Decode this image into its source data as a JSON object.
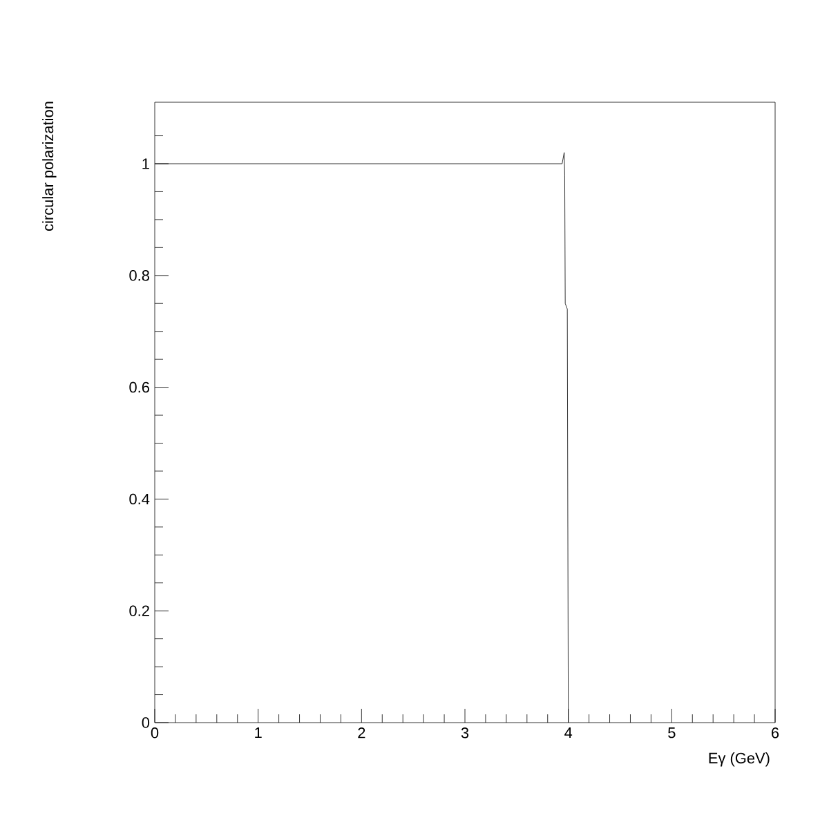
{
  "chart_data": {
    "type": "line",
    "xlabel": "Eγ (GeV)",
    "ylabel": "circular polarization",
    "x": [
      0,
      3.94,
      3.96,
      3.965,
      3.97,
      3.99,
      4.0
    ],
    "values": [
      1,
      1,
      1.02,
      0.98,
      0.75,
      0.74,
      0
    ],
    "color": "#000000",
    "line_style": "solid",
    "marker": "none",
    "grid": false,
    "xlim": [
      0,
      6
    ],
    "ylim": [
      0,
      1.11
    ],
    "xticks": [
      0,
      {
        "value": 0.2,
        "label": null
      },
      {
        "value": 0.4,
        "label": null
      },
      {
        "value": 0.6,
        "label": null
      },
      {
        "value": 0.8,
        "label": null
      },
      1,
      {
        "value": 1.2,
        "label": null
      },
      {
        "value": 1.4,
        "label": null
      },
      {
        "value": 1.6,
        "label": null
      },
      {
        "value": 1.8,
        "label": null
      },
      2,
      {
        "value": 2.2,
        "label": null
      },
      {
        "value": 2.4,
        "label": null
      },
      {
        "value": 2.6,
        "label": null
      },
      {
        "value": 2.8,
        "label": null
      },
      3,
      {
        "value": 3.2,
        "label": null
      },
      {
        "value": 3.4,
        "label": null
      },
      {
        "value": 3.6,
        "label": null
      },
      {
        "value": 3.8,
        "label": null
      },
      4,
      {
        "value": 4.2,
        "label": null
      },
      {
        "value": 4.4,
        "label": null
      },
      {
        "value": 4.6,
        "label": null
      },
      {
        "value": 4.8,
        "label": null
      },
      5,
      {
        "value": 5.2,
        "label": null
      },
      {
        "value": 5.4,
        "label": null
      },
      {
        "value": 5.6,
        "label": null
      },
      {
        "value": 5.8,
        "label": null
      },
      6
    ],
    "yticks": [
      0,
      {
        "value": 0.05,
        "label": null
      },
      {
        "value": 0.1,
        "label": null
      },
      {
        "value": 0.15,
        "label": null
      },
      0.2,
      {
        "value": 0.25,
        "label": null
      },
      {
        "value": 0.3,
        "label": null
      },
      {
        "value": 0.35,
        "label": null
      },
      0.4,
      {
        "value": 0.45,
        "label": null
      },
      {
        "value": 0.5,
        "label": null
      },
      {
        "value": 0.55,
        "label": null
      },
      0.6,
      {
        "value": 0.65,
        "label": null
      },
      {
        "value": 0.7,
        "label": null
      },
      {
        "value": 0.75,
        "label": null
      },
      0.8,
      {
        "value": 0.85,
        "label": null
      },
      {
        "value": 0.9,
        "label": null
      },
      {
        "value": 0.95,
        "label": null
      },
      1,
      {
        "value": 1.05,
        "label": null
      }
    ]
  }
}
